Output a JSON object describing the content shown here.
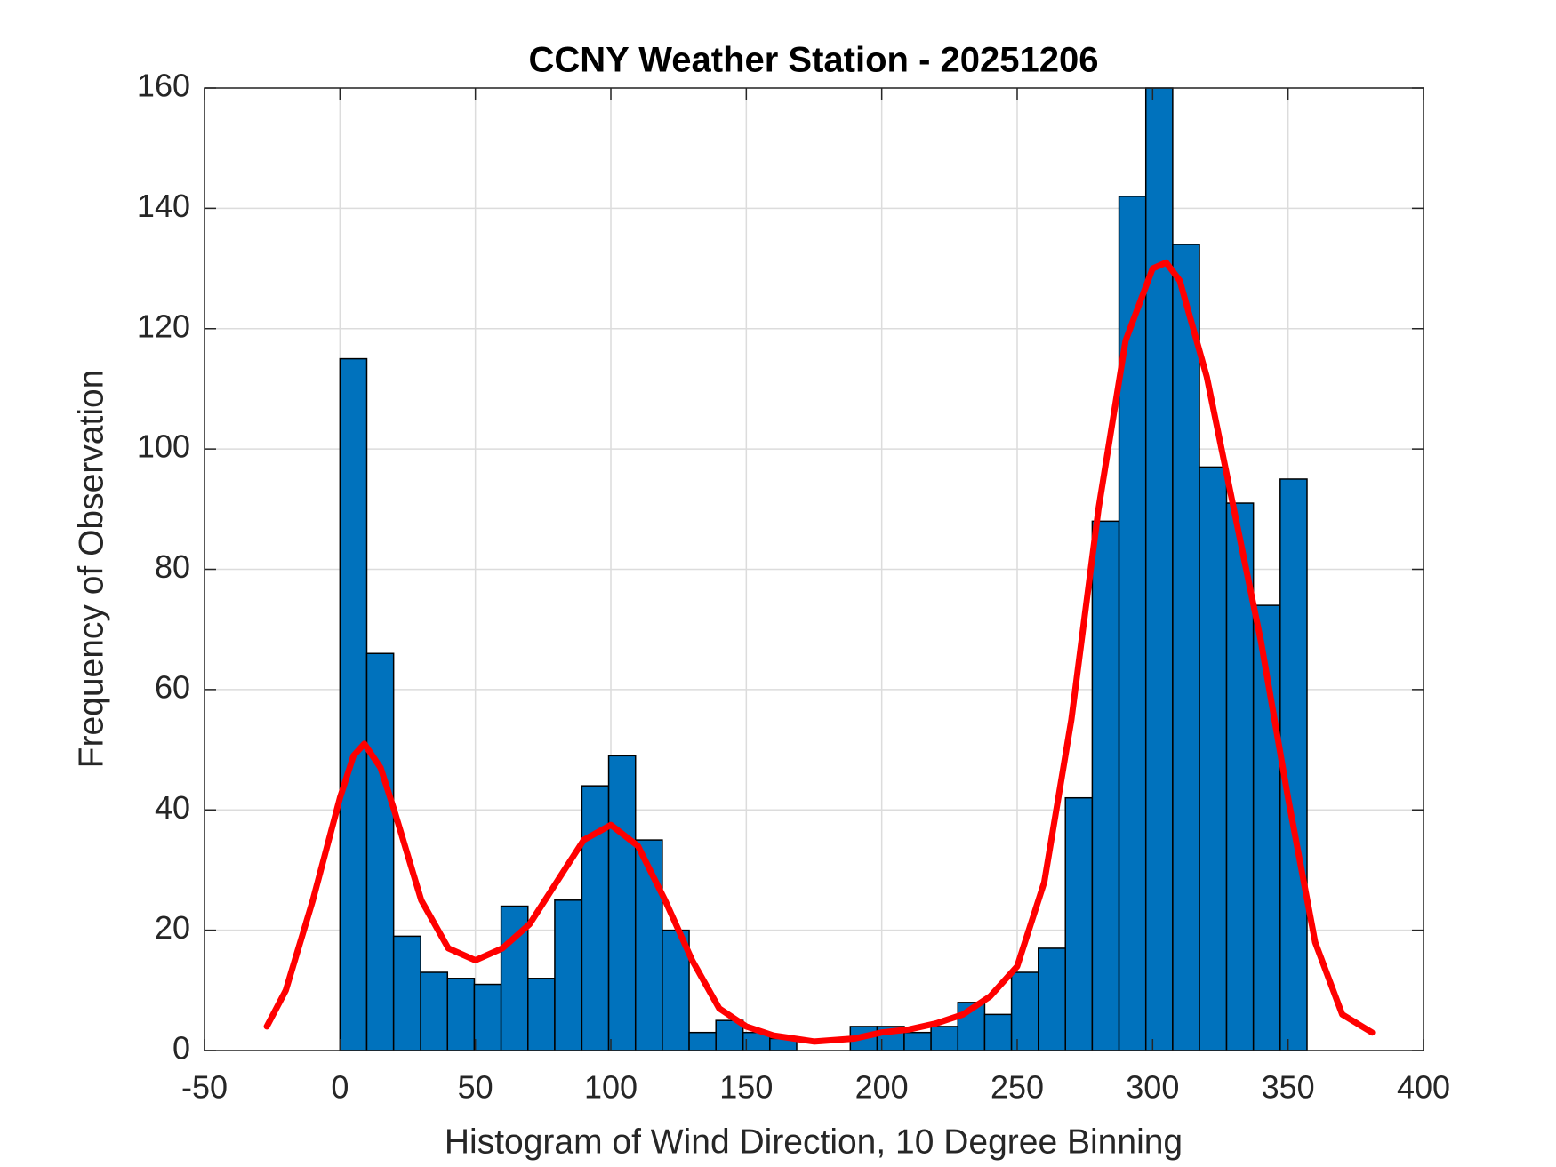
{
  "chart_data": {
    "type": "histogram",
    "title": "CCNY Weather Station - 20251206",
    "xlabel": "Histogram of Wind Direction, 10 Degree Binning",
    "ylabel": "Frequency of Observation",
    "bins": [
      0,
      9.9,
      19.8,
      29.8,
      39.7,
      49.6,
      59.5,
      69.4,
      79.3,
      89.3,
      99.2,
      109.1,
      119,
      128.9,
      138.8,
      148.8,
      158.7,
      168.6,
      178.5,
      188.4,
      198.3,
      208.3,
      218.2,
      228.1,
      238,
      247.9,
      257.8,
      267.8,
      277.7,
      287.6,
      297.5,
      307.4,
      317.3,
      327.3,
      337.2,
      347.1,
      357
    ],
    "values": [
      115,
      66,
      19,
      13,
      12,
      11,
      24,
      12,
      25,
      44,
      49,
      35,
      20,
      3,
      5,
      3,
      2,
      0,
      0,
      4,
      4,
      3,
      4,
      8,
      6,
      13,
      17,
      42,
      88,
      142,
      160,
      134,
      97,
      91,
      74,
      95
    ],
    "color": "#0072bd",
    "edgecolor": "#000000",
    "overlays": [
      {
        "type": "line",
        "color": "#ff0000",
        "x": [
          -27,
          -20,
          -10,
          0,
          5,
          9,
          15,
          20,
          30,
          40,
          50,
          60,
          70,
          80,
          90,
          100,
          110,
          120,
          130,
          140,
          150,
          160,
          175,
          190,
          200,
          210,
          220,
          230,
          240,
          250,
          260,
          270,
          280,
          290,
          300,
          305,
          310,
          320,
          330,
          340,
          350,
          360,
          370,
          381
        ],
        "values": [
          4,
          10,
          25,
          42,
          49,
          51,
          47,
          40,
          25,
          17,
          15,
          17,
          21,
          28,
          35,
          37.5,
          34,
          25,
          15,
          7,
          4,
          2.5,
          1.5,
          2,
          3,
          3.5,
          4.5,
          6,
          9,
          14,
          28,
          55,
          90,
          118,
          130,
          131,
          128,
          112,
          90,
          68,
          42,
          18,
          6,
          3
        ]
      }
    ],
    "xlim": [
      -50,
      400
    ],
    "xticks": [
      -50,
      0,
      50,
      100,
      150,
      200,
      250,
      300,
      350,
      400
    ],
    "ylim": [
      0,
      160
    ],
    "yticks": [
      0,
      20,
      40,
      60,
      80,
      100,
      120,
      140,
      160
    ],
    "grid": true
  }
}
